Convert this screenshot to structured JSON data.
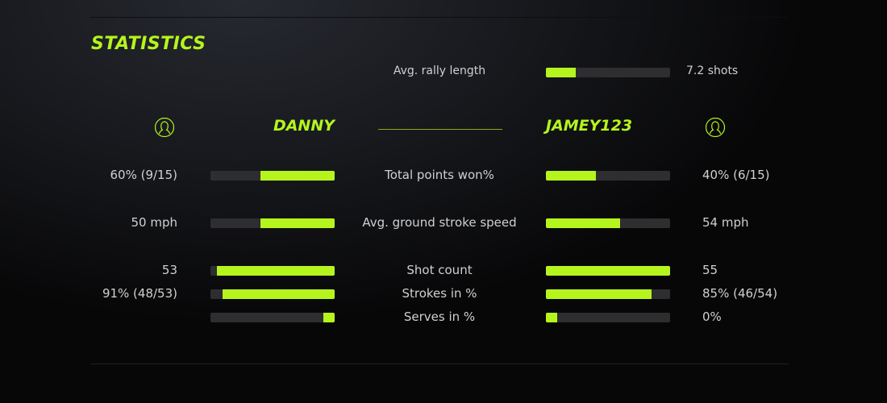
{
  "title": "STATISTICS",
  "accent": "#b5f51d",
  "rally": {
    "label": "Avg. rally length",
    "value": "7.2 shots",
    "fill": 0.24
  },
  "players": {
    "left": {
      "name": "DANNY",
      "icon": "user-circle-icon"
    },
    "right": {
      "name": "JAMEY123",
      "icon": "user-circle-icon"
    }
  },
  "stats": [
    {
      "label": "Total points won%",
      "left": "60% (9/15)",
      "right": "40% (6/15)",
      "left_fill": 0.6,
      "right_fill": 0.4
    },
    {
      "label": "Avg. ground stroke speed",
      "left": "50 mph",
      "right": "54 mph",
      "left_fill": 0.6,
      "right_fill": 0.6
    },
    {
      "label": "Shot count",
      "left": "53",
      "right": "55",
      "left_fill": 0.95,
      "right_fill": 1.0
    },
    {
      "label": "Strokes in %",
      "left": "91% (48/53)",
      "right": "85% (46/54)",
      "left_fill": 0.9,
      "right_fill": 0.85
    },
    {
      "label": "Serves in %",
      "left": "",
      "right": "0%",
      "left_fill": 0.09,
      "right_fill": 0.09
    }
  ]
}
